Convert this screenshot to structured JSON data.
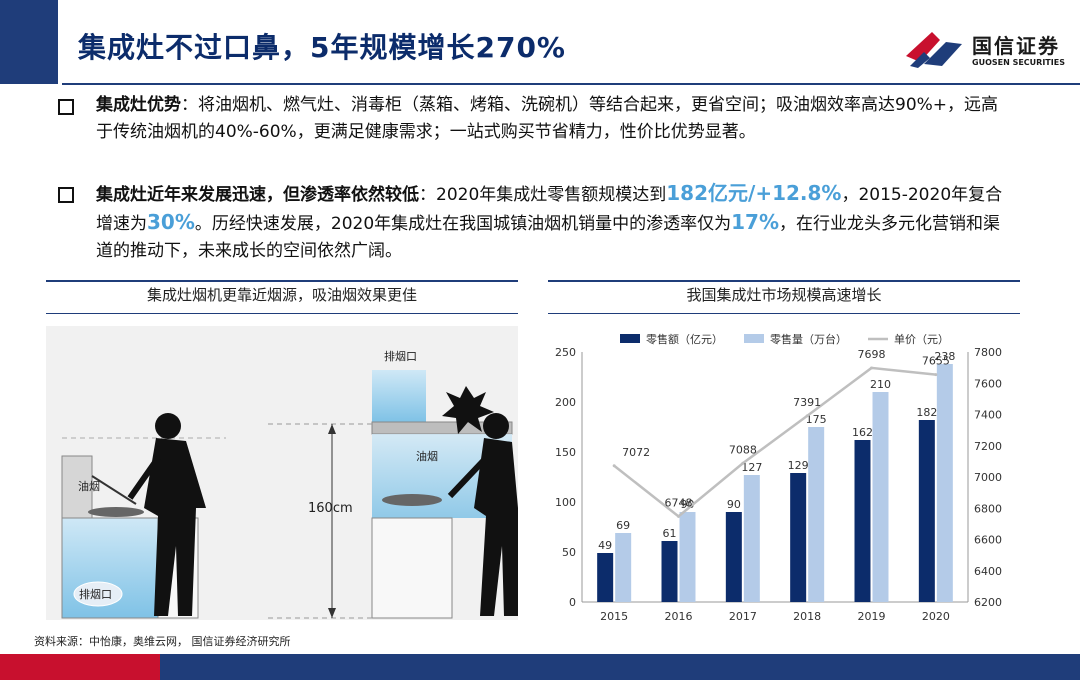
{
  "header": {
    "title": "集成灶不过口鼻，5年规模增长270%",
    "logo_cn": "国信证券",
    "logo_en": "GUOSEN SECURITIES"
  },
  "bullets": [
    {
      "lead": "集成灶优势",
      "text": "：将油烟机、燃气灶、消毒柜（蒸箱、烤箱、洗碗机）等结合起来，更省空间；吸油烟效率高达90%+，远高于传统油烟机的40%-60%，更满足健康需求；一站式购买节省精力，性价比优势显著。"
    },
    {
      "lead": "集成灶近年来发展迅速，但渗透率依然较低",
      "t1": "：2020年集成灶零售额规模达到",
      "h1": "182亿元/+12.8%",
      "t2": "，2015-2020年复合增速为",
      "h2": "30%",
      "t3": "。历经快速发展，2020年集成灶在我国城镇油烟机销量中的渗透率仅为",
      "h3": "17%",
      "t4": "，在行业龙头多元化营销和渠道的推动下，未来成长的空间依然广阔。"
    }
  ],
  "left_panel": {
    "title": "集成灶烟机更靠近烟源，吸油烟效果更佳",
    "label_exhaust_left": "排烟口",
    "label_smoke_left": "油烟",
    "label_exhaust_right": "排烟口",
    "label_smoke_right": "油烟",
    "label_height": "160cm"
  },
  "right_panel": {
    "title": "我国集成灶市场规模高速增长"
  },
  "chart_data": {
    "type": "bar",
    "categories": [
      "2015",
      "2016",
      "2017",
      "2018",
      "2019",
      "2020"
    ],
    "series": [
      {
        "name": "零售额（亿元）",
        "type": "bar",
        "axis": "left",
        "color": "#0c2c6b",
        "values": [
          49,
          61,
          90,
          129,
          162,
          182
        ]
      },
      {
        "name": "零售量（万台）",
        "type": "bar",
        "axis": "left",
        "color": "#b4cbe8",
        "values": [
          69,
          90,
          127,
          175,
          210,
          238
        ]
      },
      {
        "name": "单价（元）",
        "type": "line",
        "axis": "right",
        "color": "#bfbfbf",
        "values": [
          7072,
          6748,
          7088,
          7391,
          7698,
          7655
        ]
      }
    ],
    "ylim_left": [
      0,
      250
    ],
    "yticks_left": [
      "0",
      "50",
      "100",
      "150",
      "200",
      "250"
    ],
    "ylim_right": [
      6200,
      7800
    ],
    "yticks_right": [
      "6200",
      "6400",
      "6600",
      "6800",
      "7000",
      "7200",
      "7400",
      "7600",
      "7800"
    ],
    "legend_position": "top"
  },
  "source": "资料来源：中怡康，奥维云网， 国信证券经济研究所"
}
